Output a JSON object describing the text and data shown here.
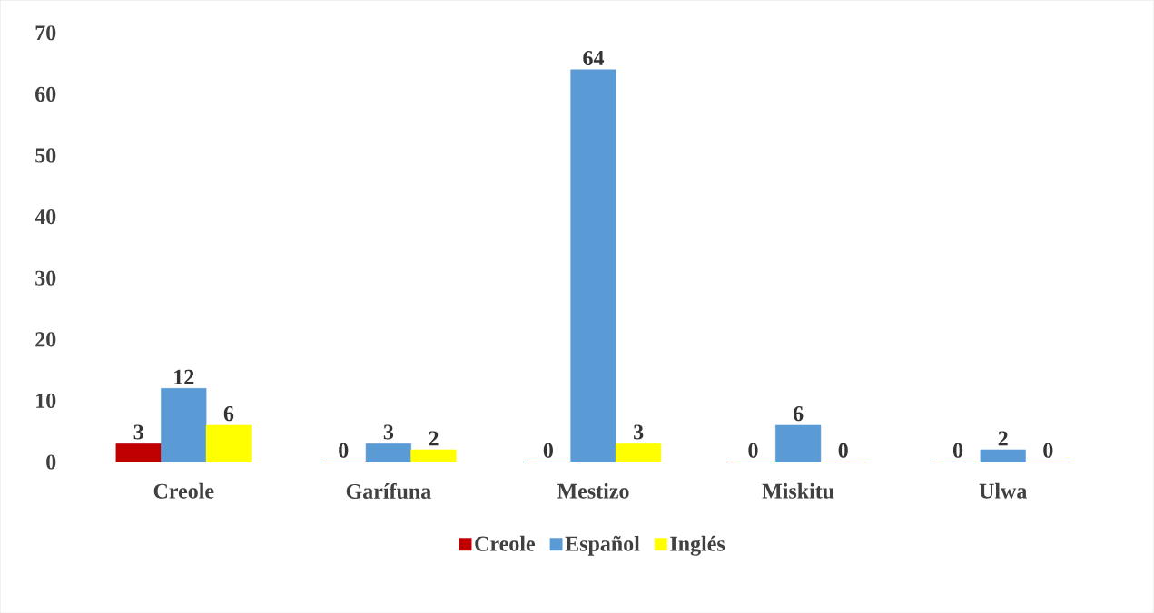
{
  "chart_data": {
    "type": "bar",
    "categories": [
      "Creole",
      "Garífuna",
      "Mestizo",
      "Miskitu",
      "Ulwa"
    ],
    "series": [
      {
        "name": "Creole",
        "color": "#c00000",
        "values": [
          3,
          0,
          0,
          0,
          0
        ]
      },
      {
        "name": "Español",
        "color": "#5b9bd5",
        "values": [
          12,
          3,
          64,
          6,
          2
        ]
      },
      {
        "name": "Inglés",
        "color": "#ffff00",
        "values": [
          6,
          2,
          3,
          0,
          0
        ]
      }
    ],
    "ylim": [
      0,
      70
    ],
    "yticks": [
      0,
      10,
      20,
      30,
      40,
      50,
      60,
      70
    ],
    "data_labels": true,
    "grid": false,
    "legend": "bottom"
  }
}
